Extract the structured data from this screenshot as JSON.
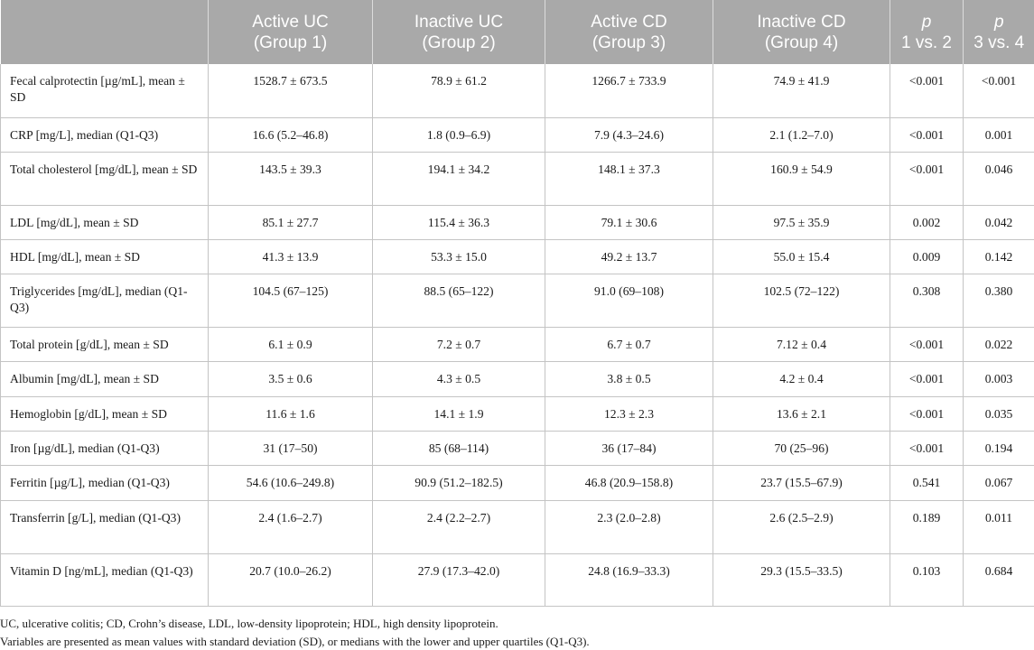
{
  "table": {
    "headers": [
      {
        "line1": "",
        "line2": ""
      },
      {
        "line1": "Active UC",
        "line2": "(Group 1)"
      },
      {
        "line1": "Inactive UC",
        "line2": "(Group 2)"
      },
      {
        "line1": "Active CD",
        "line2": "(Group 3)"
      },
      {
        "line1": "Inactive CD",
        "line2": "(Group 4)"
      },
      {
        "line1": "p",
        "line2": "1 vs. 2"
      },
      {
        "line1": "p",
        "line2": "3 vs. 4"
      }
    ],
    "rows": [
      {
        "label": "Fecal calprotectin [µg/mL], mean ± SD",
        "g1": "1528.7 ± 673.5",
        "g2": "78.9 ± 61.2",
        "g3": "1266.7 ± 733.9",
        "g4": "74.9 ± 41.9",
        "p12": "<0.001",
        "p34": "<0.001"
      },
      {
        "label": "CRP [mg/L], median (Q1-Q3)",
        "g1": "16.6 (5.2–46.8)",
        "g2": "1.8 (0.9–6.9)",
        "g3": "7.9 (4.3–24.6)",
        "g4": "2.1 (1.2–7.0)",
        "p12": "<0.001",
        "p34": "0.001"
      },
      {
        "label": "Total cholesterol [mg/dL], mean ± SD",
        "g1": "143.5 ± 39.3",
        "g2": "194.1 ± 34.2",
        "g3": "148.1 ± 37.3",
        "g4": "160.9 ± 54.9",
        "p12": "<0.001",
        "p34": "0.046"
      },
      {
        "label": "LDL [mg/dL], mean ± SD",
        "g1": "85.1 ± 27.7",
        "g2": "115.4 ± 36.3",
        "g3": "79.1 ± 30.6",
        "g4": "97.5 ± 35.9",
        "p12": "0.002",
        "p34": "0.042"
      },
      {
        "label": "HDL [mg/dL], mean ± SD",
        "g1": "41.3 ± 13.9",
        "g2": "53.3 ± 15.0",
        "g3": "49.2 ± 13.7",
        "g4": "55.0 ± 15.4",
        "p12": "0.009",
        "p34": "0.142"
      },
      {
        "label": "Triglycerides [mg/dL], median (Q1-Q3)",
        "g1": "104.5 (67–125)",
        "g2": "88.5 (65–122)",
        "g3": "91.0 (69–108)",
        "g4": "102.5 (72–122)",
        "p12": "0.308",
        "p34": "0.380"
      },
      {
        "label": "Total protein [g/dL], mean ± SD",
        "g1": "6.1 ± 0.9",
        "g2": "7.2 ± 0.7",
        "g3": "6.7 ± 0.7",
        "g4": "7.12 ± 0.4",
        "p12": "<0.001",
        "p34": "0.022"
      },
      {
        "label": "Albumin [mg/dL], mean ± SD",
        "g1": "3.5 ± 0.6",
        "g2": "4.3 ± 0.5",
        "g3": "3.8 ± 0.5",
        "g4": "4.2 ± 0.4",
        "p12": "<0.001",
        "p34": "0.003"
      },
      {
        "label": "Hemoglobin [g/dL], mean ± SD",
        "g1": "11.6 ± 1.6",
        "g2": "14.1 ± 1.9",
        "g3": "12.3 ± 2.3",
        "g4": "13.6 ± 2.1",
        "p12": "<0.001",
        "p34": "0.035"
      },
      {
        "label": "Iron [µg/dL], median (Q1-Q3)",
        "g1": "31 (17–50)",
        "g2": "85 (68–114)",
        "g3": "36 (17–84)",
        "g4": "70 (25–96)",
        "p12": "<0.001",
        "p34": "0.194"
      },
      {
        "label": "Ferritin [µg/L], median (Q1-Q3)",
        "g1": "54.6 (10.6–249.8)",
        "g2": "90.9 (51.2–182.5)",
        "g3": "46.8 (20.9–158.8)",
        "g4": "23.7 (15.5–67.9)",
        "p12": "0.541",
        "p34": "0.067"
      },
      {
        "label": "Transferrin [g/L], median (Q1-Q3)",
        "g1": "2.4 (1.6–2.7)",
        "g2": "2.4 (2.2–2.7)",
        "g3": "2.3 (2.0–2.8)",
        "g4": "2.6 (2.5–2.9)",
        "p12": "0.189",
        "p34": "0.011"
      },
      {
        "label": "Vitamin D [ng/mL], median (Q1-Q3)",
        "g1": "20.7 (10.0–26.2)",
        "g2": "27.9 (17.3–42.0)",
        "g3": "24.8 (16.9–33.3)",
        "g4": "29.3 (15.5–33.5)",
        "p12": "0.103",
        "p34": "0.684"
      }
    ]
  },
  "footnotes": [
    "UC, ulcerative colitis; CD, Crohn’s disease, LDL, low-density lipoprotein; HDL, high density lipoprotein.",
    "Variables are presented as mean values with standard deviation (SD), or medians with the lower and upper quartiles (Q1-Q3)."
  ]
}
